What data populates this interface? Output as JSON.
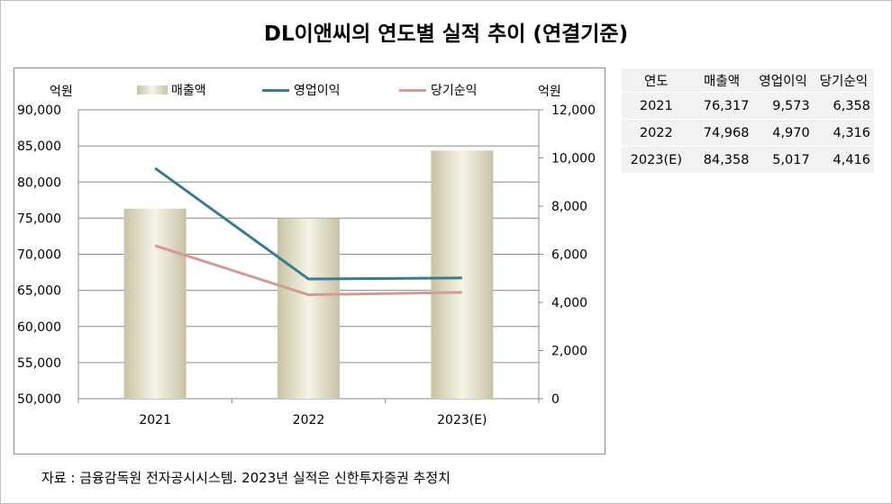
{
  "title": "DL이앤씨의 연도별 실적 추이 (연결기준)",
  "source": "자료 : 금융감독원 전자공시시스템. 2023년 실적은 신한투자증권 추정치",
  "axis_units": {
    "left": "억원",
    "right": "억원"
  },
  "legend": {
    "revenue": "매출액",
    "operating_profit": "영업이익",
    "net_income": "당기순익"
  },
  "colors": {
    "operating_profit": "#3a7b8c",
    "net_income": "#d49a95",
    "bar_light": "#f6f4e8",
    "bar_dark": "#c8c2a4"
  },
  "table": {
    "headers": [
      "연도",
      "매출액",
      "영업이익",
      "당기순익"
    ],
    "rows": [
      [
        "2021",
        "76,317",
        "9,573",
        "6,358"
      ],
      [
        "2022",
        "74,968",
        "4,970",
        "4,316"
      ],
      [
        "2023(E)",
        "84,358",
        "5,017",
        "4,416"
      ]
    ]
  },
  "chart_data": {
    "type": "bar",
    "categories": [
      "2021",
      "2022",
      "2023(E)"
    ],
    "series": [
      {
        "name": "매출액",
        "type": "bar",
        "axis": "left",
        "values": [
          76317,
          74968,
          84358
        ]
      },
      {
        "name": "영업이익",
        "type": "line",
        "axis": "right",
        "values": [
          9573,
          4970,
          5017
        ]
      },
      {
        "name": "당기순익",
        "type": "line",
        "axis": "right",
        "values": [
          6358,
          4316,
          4416
        ]
      }
    ],
    "y_left": {
      "min": 50000,
      "max": 90000,
      "step": 5000,
      "ticks": [
        "50,000",
        "55,000",
        "60,000",
        "65,000",
        "70,000",
        "75,000",
        "80,000",
        "85,000",
        "90,000"
      ]
    },
    "y_right": {
      "min": 0,
      "max": 12000,
      "step": 2000,
      "ticks": [
        "0",
        "2,000",
        "4,000",
        "6,000",
        "8,000",
        "10,000",
        "12,000"
      ]
    },
    "grid": true,
    "legend_position": "top"
  }
}
